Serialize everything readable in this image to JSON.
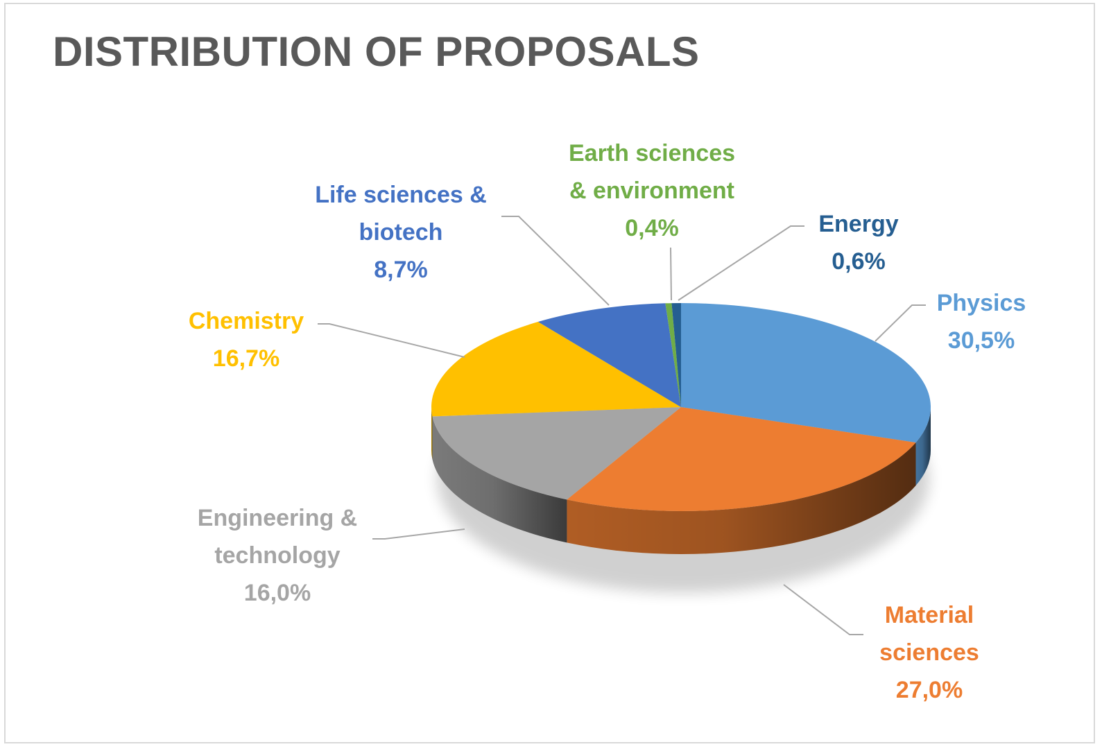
{
  "title": "DISTRIBUTION OF PROPOSALS",
  "chart_data": {
    "type": "pie",
    "title": "DISTRIBUTION OF PROPOSALS",
    "value_format": "percent",
    "slices": [
      {
        "label": "Physics",
        "value": 30.5,
        "value_text": "30,5%",
        "color": "#5b9bd5",
        "label_lines": [
          "Physics"
        ]
      },
      {
        "label": "Material sciences",
        "value": 27.0,
        "value_text": "27,0%",
        "color": "#ed7d31",
        "label_lines": [
          "Material",
          "sciences"
        ]
      },
      {
        "label": "Engineering & technology",
        "value": 16.0,
        "value_text": "16,0%",
        "color": "#a5a5a5",
        "label_lines": [
          "Engineering &",
          "technology"
        ]
      },
      {
        "label": "Chemistry",
        "value": 16.7,
        "value_text": "16,7%",
        "color": "#ffc000",
        "label_lines": [
          "Chemistry"
        ]
      },
      {
        "label": "Life sciences & biotech",
        "value": 8.7,
        "value_text": "8,7%",
        "color": "#4472c4",
        "label_lines": [
          "Life sciences &",
          "biotech"
        ]
      },
      {
        "label": "Earth sciences & environment",
        "value": 0.4,
        "value_text": "0,4%",
        "color": "#70ad47",
        "label_lines": [
          "Earth sciences",
          "& environment"
        ]
      },
      {
        "label": "Energy",
        "value": 0.6,
        "value_text": "0,6%",
        "color": "#255e91",
        "label_lines": [
          "Energy"
        ]
      }
    ],
    "legend": "none",
    "style": "3d-pie"
  }
}
